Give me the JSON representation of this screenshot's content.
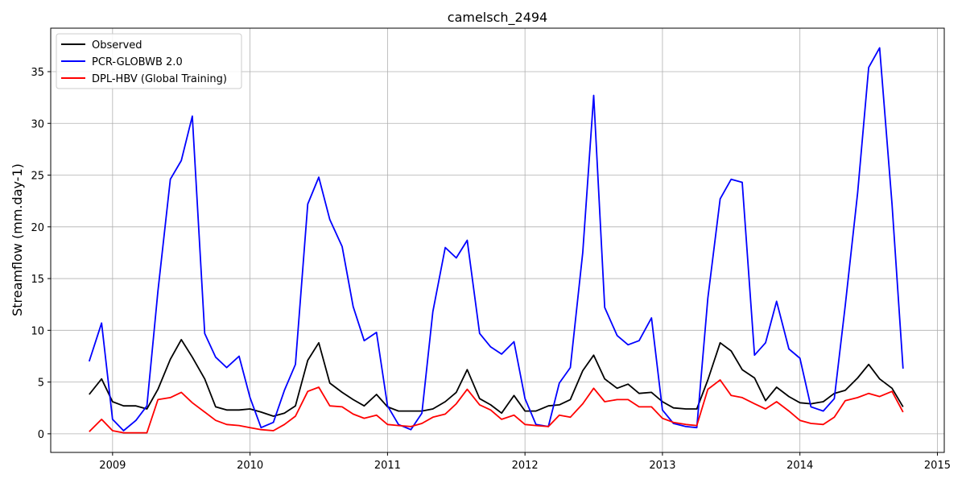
{
  "chart_data": {
    "type": "line",
    "title": "camelsch_2494",
    "xlabel": "",
    "ylabel": "Streamflow (mm.day-1)",
    "xlim": [
      2008.55,
      2015.05
    ],
    "ylim": [
      -1.8,
      39.2
    ],
    "x_ticks": [
      2009,
      2010,
      2011,
      2012,
      2013,
      2014,
      2015
    ],
    "x_tick_labels": [
      "2009",
      "2010",
      "2011",
      "2012",
      "2013",
      "2014",
      "2015"
    ],
    "y_ticks": [
      0,
      5,
      10,
      15,
      20,
      25,
      30,
      35
    ],
    "y_tick_labels": [
      "0",
      "5",
      "10",
      "15",
      "20",
      "25",
      "30",
      "35"
    ],
    "grid": true,
    "legend_position": "top-left",
    "x": [
      2008.83,
      2008.92,
      2009.0,
      2009.08,
      2009.17,
      2009.25,
      2009.33,
      2009.42,
      2009.5,
      2009.58,
      2009.67,
      2009.75,
      2009.83,
      2009.92,
      2010.0,
      2010.08,
      2010.17,
      2010.25,
      2010.33,
      2010.42,
      2010.5,
      2010.58,
      2010.67,
      2010.75,
      2010.83,
      2010.92,
      2011.0,
      2011.08,
      2011.17,
      2011.25,
      2011.33,
      2011.42,
      2011.5,
      2011.58,
      2011.67,
      2011.75,
      2011.83,
      2011.92,
      2012.0,
      2012.08,
      2012.17,
      2012.25,
      2012.33,
      2012.42,
      2012.5,
      2012.58,
      2012.67,
      2012.75,
      2012.83,
      2012.92,
      2013.0,
      2013.08,
      2013.17,
      2013.25,
      2013.33,
      2013.42,
      2013.5,
      2013.58,
      2013.67,
      2013.75,
      2013.83,
      2013.92,
      2014.0,
      2014.08,
      2014.17,
      2014.25,
      2014.33,
      2014.42,
      2014.5,
      2014.58,
      2014.67,
      2014.75
    ],
    "series": [
      {
        "name": "Observed",
        "color": "#000000",
        "values": [
          3.8,
          5.3,
          3.1,
          2.7,
          2.7,
          2.4,
          4.3,
          7.2,
          9.1,
          7.4,
          5.3,
          2.6,
          2.3,
          2.3,
          2.4,
          2.1,
          1.7,
          2.0,
          2.7,
          7.1,
          8.8,
          4.9,
          4.0,
          3.3,
          2.7,
          3.8,
          2.6,
          2.2,
          2.2,
          2.2,
          2.4,
          3.1,
          4.0,
          6.2,
          3.4,
          2.8,
          2.0,
          3.7,
          2.2,
          2.2,
          2.7,
          2.8,
          3.3,
          6.1,
          7.6,
          5.3,
          4.4,
          4.8,
          3.9,
          4.0,
          3.1,
          2.5,
          2.4,
          2.4,
          5.2,
          8.8,
          8.0,
          6.2,
          5.4,
          3.2,
          4.5,
          3.6,
          3.0,
          2.9,
          3.1,
          3.9,
          4.2,
          5.4,
          6.7,
          5.3,
          4.4,
          2.6
        ]
      },
      {
        "name": "PCR-GLOBWB 2.0",
        "color": "#0000ff",
        "values": [
          7.0,
          10.7,
          1.4,
          0.3,
          1.3,
          2.7,
          13.8,
          24.6,
          26.4,
          30.7,
          9.7,
          7.4,
          6.4,
          7.5,
          3.5,
          0.6,
          1.1,
          4.2,
          6.7,
          22.2,
          24.8,
          20.7,
          18.1,
          12.3,
          9.0,
          9.8,
          2.7,
          0.9,
          0.4,
          2.0,
          11.8,
          18.0,
          17.0,
          18.7,
          9.7,
          8.4,
          7.7,
          8.9,
          3.4,
          0.9,
          0.7,
          4.9,
          6.4,
          17.5,
          32.7,
          12.2,
          9.5,
          8.6,
          9.0,
          11.2,
          2.3,
          1.0,
          0.7,
          0.6,
          13.1,
          22.7,
          24.6,
          24.3,
          7.6,
          8.8,
          12.8,
          8.2,
          7.3,
          2.6,
          2.2,
          3.4,
          12.4,
          23.3,
          35.4,
          37.3,
          22.2,
          6.3
        ]
      },
      {
        "name": "DPL-HBV (Global Training)",
        "color": "#ff0000",
        "values": [
          0.2,
          1.4,
          0.3,
          0.1,
          0.1,
          0.1,
          3.3,
          3.5,
          4.0,
          3.0,
          2.1,
          1.3,
          0.9,
          0.8,
          0.6,
          0.4,
          0.3,
          0.9,
          1.7,
          4.1,
          4.5,
          2.7,
          2.6,
          1.9,
          1.5,
          1.8,
          0.9,
          0.8,
          0.7,
          1.0,
          1.6,
          1.9,
          2.9,
          4.3,
          2.8,
          2.3,
          1.4,
          1.8,
          0.9,
          0.8,
          0.7,
          1.8,
          1.6,
          2.9,
          4.4,
          3.1,
          3.3,
          3.3,
          2.6,
          2.6,
          1.5,
          1.1,
          0.9,
          0.8,
          4.3,
          5.2,
          3.7,
          3.5,
          2.9,
          2.4,
          3.1,
          2.2,
          1.3,
          1.0,
          0.9,
          1.6,
          3.2,
          3.5,
          3.9,
          3.6,
          4.1,
          2.1
        ]
      }
    ]
  }
}
